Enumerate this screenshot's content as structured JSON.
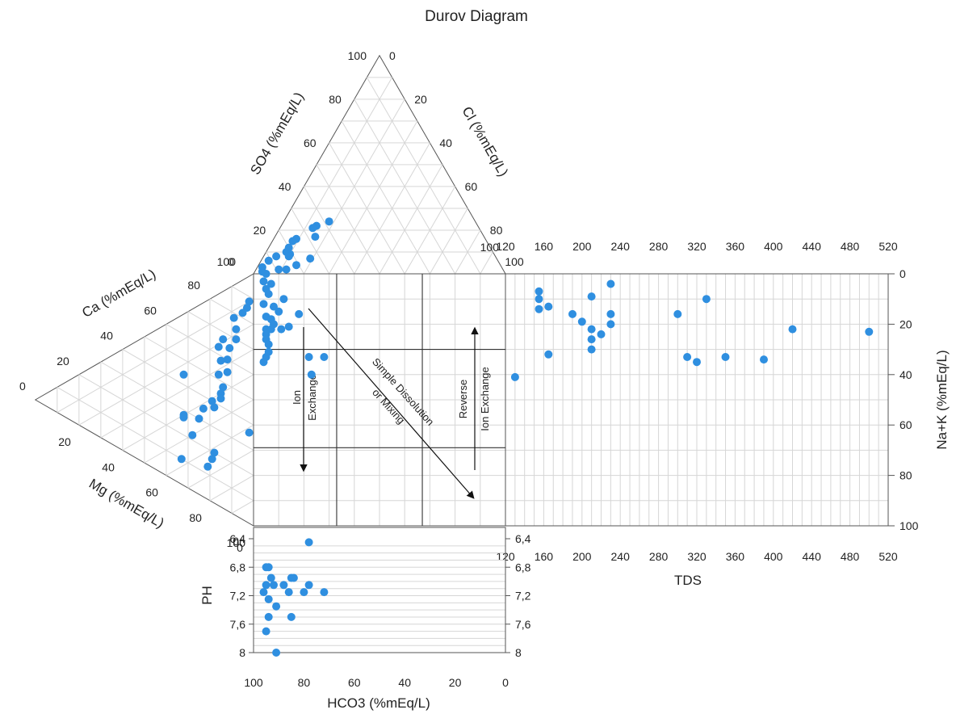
{
  "chart_data": {
    "type": "scatter",
    "title": "Durov Diagram",
    "panels": {
      "anion_triangle": {
        "axes": {
          "so4": {
            "label": "SO4 (%mEq/L)",
            "ticks": [
              "0",
              "20",
              "40",
              "60",
              "80",
              "100"
            ]
          },
          "cl": {
            "label": "Cl (%mEq/L)",
            "ticks": [
              "0",
              "20",
              "40",
              "60",
              "80",
              "100"
            ]
          },
          "hco3": {
            "label": "HCO3 (%mEq/L)"
          }
        },
        "points": [
          {
            "so4": 24,
            "cl": 18
          },
          {
            "so4": 22,
            "cl": 14
          },
          {
            "so4": 21,
            "cl": 13
          },
          {
            "so4": 17,
            "cl": 16
          },
          {
            "so4": 16,
            "cl": 9
          },
          {
            "so4": 15,
            "cl": 8
          },
          {
            "so4": 10,
            "cl": 8
          },
          {
            "so4": 9,
            "cl": 10
          },
          {
            "so4": 8,
            "cl": 10
          },
          {
            "so4": 8,
            "cl": 5
          },
          {
            "so4": 6,
            "cl": 3
          },
          {
            "so4": 4,
            "cl": 15
          },
          {
            "so4": 3,
            "cl": 2
          },
          {
            "so4": 2,
            "cl": 12
          },
          {
            "so4": 2,
            "cl": 9
          },
          {
            "so4": 1,
            "cl": 3
          },
          {
            "so4": 7,
            "cl": 19
          },
          {
            "so4": 12,
            "cl": 8
          }
        ]
      },
      "cation_triangle": {
        "axes": {
          "ca": {
            "label": "Ca (%mEq/L)",
            "ticks": [
              "0",
              "20",
              "40",
              "60",
              "80",
              "100"
            ]
          },
          "mg": {
            "label": "Mg (%mEq/L)",
            "ticks": [
              "0",
              "20",
              "40",
              "60",
              "80",
              "100"
            ]
          },
          "na_k": {
            "label": "Na+K (%mEq/L)"
          }
        },
        "points": [
          {
            "ca": 88,
            "mg": 10
          },
          {
            "ca": 85,
            "mg": 12
          },
          {
            "ca": 82,
            "mg": 13
          },
          {
            "ca": 78,
            "mg": 13
          },
          {
            "ca": 74,
            "mg": 18
          },
          {
            "ca": 70,
            "mg": 22
          },
          {
            "ca": 67,
            "mg": 19
          },
          {
            "ca": 65,
            "mg": 24
          },
          {
            "ca": 63,
            "mg": 21
          },
          {
            "ca": 60,
            "mg": 28
          },
          {
            "ca": 58,
            "mg": 27
          },
          {
            "ca": 55,
            "mg": 33
          },
          {
            "ca": 52,
            "mg": 32
          },
          {
            "ca": 48,
            "mg": 38
          },
          {
            "ca": 45,
            "mg": 40
          },
          {
            "ca": 43,
            "mg": 42
          },
          {
            "ca": 40,
            "mg": 41
          },
          {
            "ca": 38,
            "mg": 44
          },
          {
            "ca": 35,
            "mg": 42
          },
          {
            "ca": 30,
            "mg": 45
          },
          {
            "ca": 28,
            "mg": 40
          },
          {
            "ca": 27,
            "mg": 41
          },
          {
            "ca": 22,
            "mg": 50
          },
          {
            "ca": 20,
            "mg": 62
          },
          {
            "ca": 17,
            "mg": 64
          },
          {
            "ca": 13,
            "mg": 66
          },
          {
            "ca": 10,
            "mg": 57
          },
          {
            "ca": 36,
            "mg": 62
          },
          {
            "ca": 44,
            "mg": 24
          }
        ]
      },
      "central_square": {
        "x_axis": "HCO3 (%mEq/L)",
        "y_axis": "Na+K (%mEq/L)",
        "points": [
          {
            "hco3": 95,
            "nak": 0
          },
          {
            "hco3": 96,
            "nak": 3
          },
          {
            "hco3": 93,
            "nak": 4
          },
          {
            "hco3": 95,
            "nak": 6
          },
          {
            "hco3": 94,
            "nak": 8
          },
          {
            "hco3": 88,
            "nak": 10
          },
          {
            "hco3": 92,
            "nak": 13
          },
          {
            "hco3": 82,
            "nak": 16
          },
          {
            "hco3": 90,
            "nak": 15
          },
          {
            "hco3": 95,
            "nak": 17
          },
          {
            "hco3": 93,
            "nak": 18
          },
          {
            "hco3": 86,
            "nak": 21
          },
          {
            "hco3": 95,
            "nak": 22
          },
          {
            "hco3": 93,
            "nak": 22
          },
          {
            "hco3": 92,
            "nak": 20
          },
          {
            "hco3": 89,
            "nak": 22
          },
          {
            "hco3": 95,
            "nak": 24
          },
          {
            "hco3": 95,
            "nak": 26
          },
          {
            "hco3": 94,
            "nak": 28
          },
          {
            "hco3": 96,
            "nak": 12
          },
          {
            "hco3": 94,
            "nak": 31
          },
          {
            "hco3": 95,
            "nak": 33
          },
          {
            "hco3": 78,
            "nak": 33
          },
          {
            "hco3": 72,
            "nak": 33
          },
          {
            "hco3": 77,
            "nak": 40
          },
          {
            "hco3": 96,
            "nak": 35
          }
        ],
        "annotations": [
          "Ion",
          "Exchange",
          "Simple Dissolution",
          "or Mixing",
          "Reverse",
          "Ion Exchange"
        ]
      },
      "tds_panel": {
        "x_label": "TDS",
        "x_ticks": [
          "120",
          "160",
          "200",
          "240",
          "280",
          "320",
          "360",
          "400",
          "440",
          "480",
          "520"
        ],
        "xlim": [
          120,
          520
        ],
        "y_label": "Na+K (%mEq/L)",
        "y_ticks": [
          "0",
          "20",
          "40",
          "60",
          "80",
          "100"
        ],
        "ylim": [
          0,
          100
        ],
        "corner_label": "100",
        "points": [
          {
            "tds": 130,
            "nak": 41
          },
          {
            "tds": 155,
            "nak": 7
          },
          {
            "tds": 155,
            "nak": 10
          },
          {
            "tds": 155,
            "nak": 14
          },
          {
            "tds": 165,
            "nak": 13
          },
          {
            "tds": 165,
            "nak": 32
          },
          {
            "tds": 190,
            "nak": 16
          },
          {
            "tds": 200,
            "nak": 19
          },
          {
            "tds": 210,
            "nak": 9
          },
          {
            "tds": 210,
            "nak": 22
          },
          {
            "tds": 210,
            "nak": 26
          },
          {
            "tds": 210,
            "nak": 30
          },
          {
            "tds": 220,
            "nak": 24
          },
          {
            "tds": 230,
            "nak": 4
          },
          {
            "tds": 230,
            "nak": 16
          },
          {
            "tds": 230,
            "nak": 20
          },
          {
            "tds": 300,
            "nak": 16
          },
          {
            "tds": 310,
            "nak": 33
          },
          {
            "tds": 320,
            "nak": 35
          },
          {
            "tds": 330,
            "nak": 10
          },
          {
            "tds": 350,
            "nak": 33
          },
          {
            "tds": 390,
            "nak": 34
          },
          {
            "tds": 420,
            "nak": 22
          },
          {
            "tds": 500,
            "nak": 23
          }
        ]
      },
      "ph_panel": {
        "x_label": "HCO3 (%mEq/L)",
        "x_ticks": [
          "100",
          "80",
          "60",
          "40",
          "20",
          "0"
        ],
        "xlim": [
          100,
          0
        ],
        "y_label": "PH",
        "y_ticks": [
          "6,4",
          "6,8",
          "7,2",
          "7,6",
          "8"
        ],
        "ylim": [
          6.4,
          8.0
        ],
        "corner_label": "0",
        "points": [
          {
            "hco3": 78,
            "ph": 6.45
          },
          {
            "hco3": 95,
            "ph": 6.8
          },
          {
            "hco3": 94,
            "ph": 6.8
          },
          {
            "hco3": 93,
            "ph": 6.95
          },
          {
            "hco3": 85,
            "ph": 6.95
          },
          {
            "hco3": 84,
            "ph": 6.95
          },
          {
            "hco3": 95,
            "ph": 7.05
          },
          {
            "hco3": 92,
            "ph": 7.05
          },
          {
            "hco3": 88,
            "ph": 7.05
          },
          {
            "hco3": 78,
            "ph": 7.05
          },
          {
            "hco3": 96,
            "ph": 7.15
          },
          {
            "hco3": 86,
            "ph": 7.15
          },
          {
            "hco3": 80,
            "ph": 7.15
          },
          {
            "hco3": 72,
            "ph": 7.15
          },
          {
            "hco3": 94,
            "ph": 7.25
          },
          {
            "hco3": 91,
            "ph": 7.35
          },
          {
            "hco3": 94,
            "ph": 7.5
          },
          {
            "hco3": 85,
            "ph": 7.5
          },
          {
            "hco3": 95,
            "ph": 7.7
          },
          {
            "hco3": 91,
            "ph": 8.0
          }
        ]
      }
    },
    "marker_color": "#2f8fe0",
    "grid": true
  }
}
